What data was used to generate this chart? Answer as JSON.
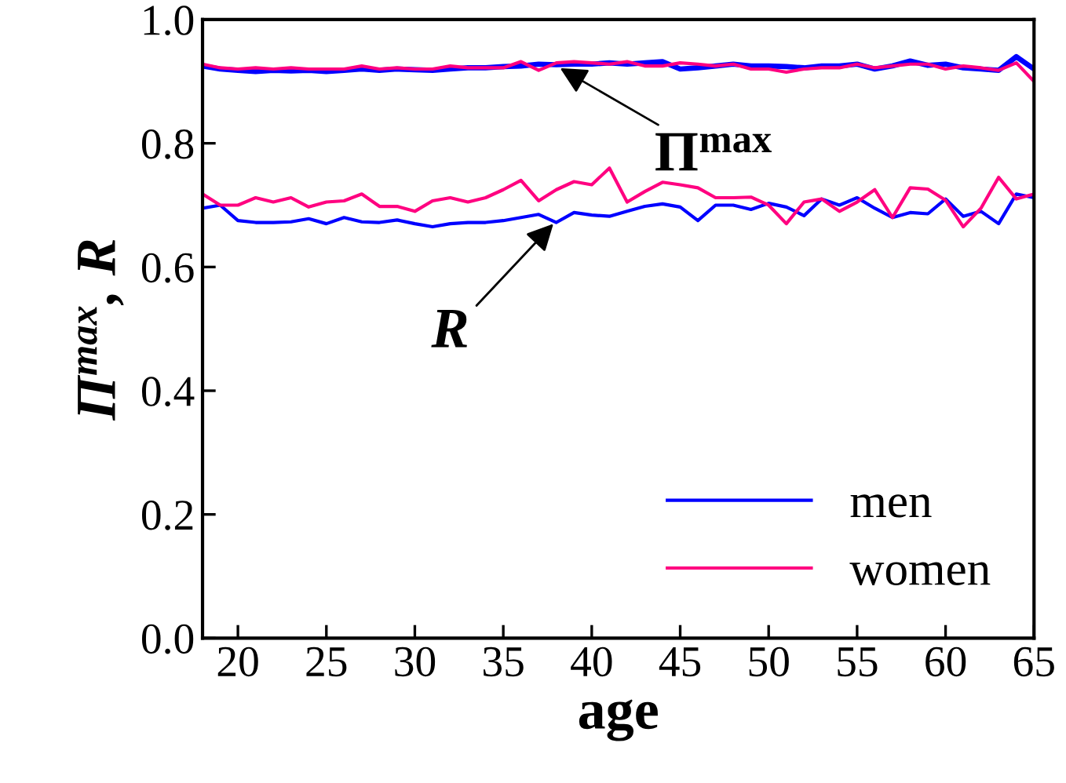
{
  "chart_data": {
    "type": "line",
    "xlabel": "age",
    "ylabel": "Π$^{max}$, R",
    "x": [
      18,
      19,
      20,
      21,
      22,
      23,
      24,
      25,
      26,
      27,
      28,
      29,
      30,
      31,
      32,
      33,
      34,
      35,
      36,
      37,
      38,
      39,
      40,
      41,
      42,
      43,
      44,
      45,
      46,
      47,
      48,
      49,
      50,
      51,
      52,
      53,
      54,
      55,
      56,
      57,
      58,
      59,
      60,
      61,
      62,
      63,
      64,
      65
    ],
    "series": [
      {
        "color": "#0000ff",
        "values": [
          0.925,
          0.92,
          0.918,
          0.916,
          0.918,
          0.917,
          0.918,
          0.916,
          0.918,
          0.92,
          0.918,
          0.92,
          0.919,
          0.918,
          0.92,
          0.922,
          0.922,
          0.924,
          0.925,
          0.928,
          0.927,
          0.928,
          0.928,
          0.93,
          0.928,
          0.93,
          0.932,
          0.92,
          0.922,
          0.925,
          0.928,
          0.925,
          0.925,
          0.924,
          0.922,
          0.925,
          0.925,
          0.928,
          0.92,
          0.925,
          0.933,
          0.926,
          0.928,
          0.922,
          0.92,
          0.918,
          0.94,
          0.92
        ]
      },
      {
        "color": "#ff0080",
        "values": [
          0.928,
          0.922,
          0.92,
          0.922,
          0.92,
          0.922,
          0.92,
          0.92,
          0.92,
          0.925,
          0.92,
          0.922,
          0.92,
          0.92,
          0.925,
          0.922,
          0.922,
          0.922,
          0.932,
          0.918,
          0.93,
          0.932,
          0.93,
          0.928,
          0.932,
          0.925,
          0.925,
          0.93,
          0.928,
          0.925,
          0.928,
          0.92,
          0.92,
          0.915,
          0.92,
          0.922,
          0.922,
          0.928,
          0.922,
          0.925,
          0.928,
          0.928,
          0.92,
          0.925,
          0.922,
          0.918,
          0.93,
          0.9
        ]
      },
      {
        "name": "men",
        "color": "#0000ff",
        "values": [
          0.695,
          0.7,
          0.675,
          0.672,
          0.672,
          0.673,
          0.678,
          0.67,
          0.68,
          0.673,
          0.672,
          0.676,
          0.67,
          0.665,
          0.67,
          0.672,
          0.672,
          0.675,
          0.68,
          0.685,
          0.672,
          0.688,
          0.684,
          0.682,
          0.69,
          0.698,
          0.702,
          0.697,
          0.675,
          0.7,
          0.7,
          0.693,
          0.703,
          0.697,
          0.683,
          0.71,
          0.7,
          0.712,
          0.695,
          0.68,
          0.688,
          0.686,
          0.71,
          0.682,
          0.69,
          0.67,
          0.718,
          0.712
        ]
      },
      {
        "name": "women",
        "color": "#ff0080",
        "values": [
          0.718,
          0.7,
          0.7,
          0.712,
          0.705,
          0.712,
          0.697,
          0.705,
          0.707,
          0.718,
          0.698,
          0.698,
          0.69,
          0.707,
          0.712,
          0.705,
          0.712,
          0.725,
          0.74,
          0.707,
          0.725,
          0.738,
          0.733,
          0.76,
          0.705,
          0.722,
          0.737,
          0.733,
          0.728,
          0.712,
          0.712,
          0.713,
          0.7,
          0.67,
          0.705,
          0.71,
          0.69,
          0.705,
          0.725,
          0.68,
          0.728,
          0.726,
          0.708,
          0.665,
          0.695,
          0.745,
          0.71,
          0.718
        ]
      }
    ],
    "annotations": [
      {
        "text": "Π$^{max}$",
        "x": 38,
        "y": 0.925
      },
      {
        "text": "R",
        "x": 38,
        "y": 0.675
      }
    ],
    "xlim": [
      18,
      65
    ],
    "xticks": [
      20,
      25,
      30,
      35,
      40,
      45,
      50,
      55,
      60,
      65
    ],
    "ylim": [
      0,
      1
    ],
    "yticks": [
      {
        "value": 0,
        "label": "0.0"
      },
      {
        "value": 0.2,
        "label": "0.2"
      },
      {
        "value": 0.4,
        "label": "0.4"
      },
      {
        "value": 0.6,
        "label": "0.6"
      },
      {
        "value": 0.8,
        "label": "0.8"
      },
      {
        "value": 1,
        "label": "1.0"
      }
    ],
    "grid": false,
    "legend": "bottom right",
    "marker": "none",
    "line_style": "solid"
  }
}
